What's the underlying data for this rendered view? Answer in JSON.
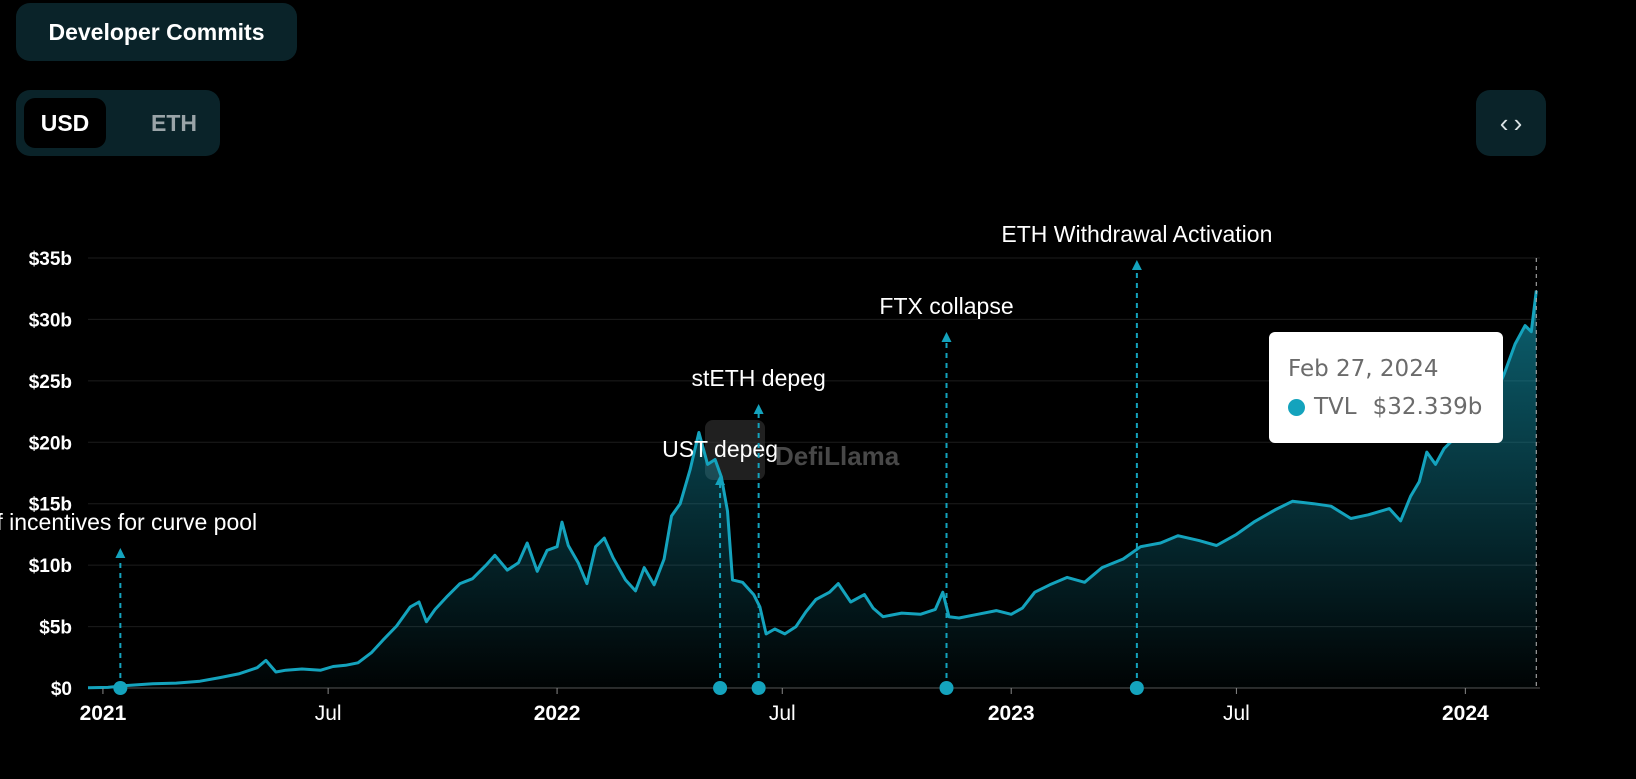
{
  "header": {
    "dev_commits_label": "Developer Commits"
  },
  "currency": {
    "options": [
      "USD",
      "ETH"
    ],
    "selected": "USD"
  },
  "embed_icon": "code-brackets-icon",
  "watermark": "DefiLlama",
  "tooltip": {
    "date": "Feb 27, 2024",
    "series_name": "TVL",
    "value": "$32.339b"
  },
  "colors": {
    "line": "#14a3bd",
    "grid": "#1c1c1c",
    "tooltip_bg": "#ffffff"
  },
  "chart_data": {
    "type": "area",
    "x_range": [
      "2020-12-20",
      "2024-03-01"
    ],
    "ylim": [
      0,
      35
    ],
    "y_ticks": [
      {
        "value": 0,
        "label": "$0"
      },
      {
        "value": 5,
        "label": "$5b"
      },
      {
        "value": 10,
        "label": "$10b"
      },
      {
        "value": 15,
        "label": "$15b"
      },
      {
        "value": 20,
        "label": "$20b"
      },
      {
        "value": 25,
        "label": "$25b"
      },
      {
        "value": 30,
        "label": "$30b"
      },
      {
        "value": 35,
        "label": "$35b"
      }
    ],
    "x_ticks": [
      {
        "date": "2021-01-01",
        "label": "2021",
        "bold": true
      },
      {
        "date": "2021-07-01",
        "label": "Jul",
        "bold": false
      },
      {
        "date": "2022-01-01",
        "label": "2022",
        "bold": true
      },
      {
        "date": "2022-07-01",
        "label": "Jul",
        "bold": false
      },
      {
        "date": "2023-01-01",
        "label": "2023",
        "bold": true
      },
      {
        "date": "2023-07-01",
        "label": "Jul",
        "bold": false
      },
      {
        "date": "2024-01-01",
        "label": "2024",
        "bold": true
      }
    ],
    "series": [
      {
        "name": "TVL",
        "unit": "$b",
        "points": [
          [
            "2020-12-20",
            0.02
          ],
          [
            "2021-01-05",
            0.05
          ],
          [
            "2021-01-20",
            0.2
          ],
          [
            "2021-02-10",
            0.35
          ],
          [
            "2021-03-01",
            0.4
          ],
          [
            "2021-03-20",
            0.55
          ],
          [
            "2021-04-05",
            0.85
          ],
          [
            "2021-04-20",
            1.15
          ],
          [
            "2021-05-05",
            1.65
          ],
          [
            "2021-05-12",
            2.25
          ],
          [
            "2021-05-20",
            1.3
          ],
          [
            "2021-05-28",
            1.45
          ],
          [
            "2021-06-10",
            1.55
          ],
          [
            "2021-06-25",
            1.45
          ],
          [
            "2021-07-05",
            1.75
          ],
          [
            "2021-07-15",
            1.85
          ],
          [
            "2021-07-25",
            2.05
          ],
          [
            "2021-08-05",
            2.9
          ],
          [
            "2021-08-15",
            4.0
          ],
          [
            "2021-08-25",
            5.05
          ],
          [
            "2021-09-05",
            6.6
          ],
          [
            "2021-09-12",
            7.0
          ],
          [
            "2021-09-18",
            5.4
          ],
          [
            "2021-09-25",
            6.4
          ],
          [
            "2021-10-05",
            7.5
          ],
          [
            "2021-10-15",
            8.5
          ],
          [
            "2021-10-25",
            8.9
          ],
          [
            "2021-11-05",
            10.0
          ],
          [
            "2021-11-12",
            10.8
          ],
          [
            "2021-11-22",
            9.6
          ],
          [
            "2021-12-01",
            10.2
          ],
          [
            "2021-12-08",
            11.8
          ],
          [
            "2021-12-16",
            9.5
          ],
          [
            "2021-12-24",
            11.2
          ],
          [
            "2022-01-01",
            11.5
          ],
          [
            "2022-01-05",
            13.5
          ],
          [
            "2022-01-10",
            11.6
          ],
          [
            "2022-01-18",
            10.2
          ],
          [
            "2022-01-25",
            8.5
          ],
          [
            "2022-02-01",
            11.5
          ],
          [
            "2022-02-08",
            12.2
          ],
          [
            "2022-02-15",
            10.6
          ],
          [
            "2022-02-25",
            8.8
          ],
          [
            "2022-03-05",
            7.9
          ],
          [
            "2022-03-12",
            9.8
          ],
          [
            "2022-03-20",
            8.4
          ],
          [
            "2022-03-28",
            10.5
          ],
          [
            "2022-04-03",
            14.0
          ],
          [
            "2022-04-10",
            15.0
          ],
          [
            "2022-04-18",
            17.8
          ],
          [
            "2022-04-25",
            20.8
          ],
          [
            "2022-05-02",
            18.2
          ],
          [
            "2022-05-08",
            18.6
          ],
          [
            "2022-05-13",
            17.2
          ],
          [
            "2022-05-18",
            14.4
          ],
          [
            "2022-05-22",
            8.8
          ],
          [
            "2022-05-30",
            8.6
          ],
          [
            "2022-06-08",
            7.6
          ],
          [
            "2022-06-13",
            6.6
          ],
          [
            "2022-06-18",
            4.4
          ],
          [
            "2022-06-25",
            4.8
          ],
          [
            "2022-07-03",
            4.4
          ],
          [
            "2022-07-12",
            5.0
          ],
          [
            "2022-07-20",
            6.2
          ],
          [
            "2022-07-28",
            7.2
          ],
          [
            "2022-08-08",
            7.8
          ],
          [
            "2022-08-15",
            8.5
          ],
          [
            "2022-08-25",
            7.0
          ],
          [
            "2022-09-05",
            7.6
          ],
          [
            "2022-09-12",
            6.5
          ],
          [
            "2022-09-20",
            5.8
          ],
          [
            "2022-10-05",
            6.1
          ],
          [
            "2022-10-20",
            6.0
          ],
          [
            "2022-11-01",
            6.4
          ],
          [
            "2022-11-07",
            7.8
          ],
          [
            "2022-11-12",
            5.8
          ],
          [
            "2022-11-20",
            5.7
          ],
          [
            "2022-12-05",
            6.0
          ],
          [
            "2022-12-20",
            6.3
          ],
          [
            "2023-01-01",
            6.0
          ],
          [
            "2023-01-10",
            6.5
          ],
          [
            "2023-01-20",
            7.8
          ],
          [
            "2023-02-01",
            8.4
          ],
          [
            "2023-02-15",
            9.0
          ],
          [
            "2023-03-01",
            8.6
          ],
          [
            "2023-03-15",
            9.8
          ],
          [
            "2023-04-01",
            10.5
          ],
          [
            "2023-04-15",
            11.5
          ],
          [
            "2023-05-01",
            11.8
          ],
          [
            "2023-05-15",
            12.4
          ],
          [
            "2023-06-01",
            12.0
          ],
          [
            "2023-06-15",
            11.6
          ],
          [
            "2023-07-01",
            12.5
          ],
          [
            "2023-07-15",
            13.5
          ],
          [
            "2023-08-01",
            14.5
          ],
          [
            "2023-08-15",
            15.2
          ],
          [
            "2023-09-01",
            15.0
          ],
          [
            "2023-09-15",
            14.8
          ],
          [
            "2023-10-01",
            13.8
          ],
          [
            "2023-10-15",
            14.1
          ],
          [
            "2023-11-01",
            14.6
          ],
          [
            "2023-11-10",
            13.6
          ],
          [
            "2023-11-18",
            15.6
          ],
          [
            "2023-11-25",
            16.8
          ],
          [
            "2023-12-01",
            19.2
          ],
          [
            "2023-12-08",
            18.2
          ],
          [
            "2023-12-15",
            19.5
          ],
          [
            "2023-12-22",
            20.2
          ],
          [
            "2024-01-01",
            21.0
          ],
          [
            "2024-01-10",
            21.5
          ],
          [
            "2024-01-20",
            22.8
          ],
          [
            "2024-02-01",
            25.5
          ],
          [
            "2024-02-10",
            28.0
          ],
          [
            "2024-02-18",
            29.5
          ],
          [
            "2024-02-23",
            29.0
          ],
          [
            "2024-02-27",
            32.339
          ]
        ]
      }
    ],
    "annotations": [
      {
        "date": "2021-01-15",
        "label": "of incentives for curve pool",
        "label_top": 515
      },
      {
        "date": "2022-05-12",
        "label": "UST depeg",
        "label_top": 442
      },
      {
        "date": "2022-06-12",
        "label": "stETH depeg",
        "label_top": 371
      },
      {
        "date": "2022-11-10",
        "label": "FTX collapse",
        "label_top": 299
      },
      {
        "date": "2023-04-12",
        "label": "ETH Withdrawal Activation",
        "label_top": 227
      }
    ],
    "tooltip_date": "2024-02-27"
  }
}
